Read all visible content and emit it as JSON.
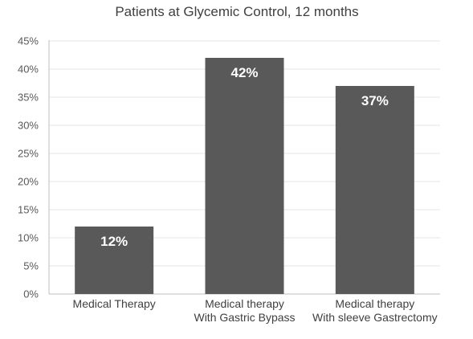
{
  "chart_data": {
    "type": "bar",
    "title": "Patients at Glycemic Control, 12 months",
    "xlabel": "",
    "ylabel": "",
    "categories": [
      [
        "Medical Therapy"
      ],
      [
        "Medical therapy",
        "With Gastric Bypass"
      ],
      [
        "Medical therapy",
        "With sleeve Gastrectomy"
      ]
    ],
    "values": [
      12,
      42,
      37
    ],
    "data_labels": [
      "12%",
      "42%",
      "37%"
    ],
    "ylim": [
      0,
      45
    ],
    "yticks": [
      0,
      5,
      10,
      15,
      20,
      25,
      30,
      35,
      40,
      45
    ],
    "ytick_labels": [
      "0%",
      "5%",
      "10%",
      "15%",
      "20%",
      "25%",
      "30%",
      "35%",
      "40%",
      "45%"
    ],
    "grid": true,
    "legend": "none",
    "colors": {
      "bar": "#595959",
      "grid": "#e6e6e6",
      "axis": "#bfbfbf"
    }
  }
}
